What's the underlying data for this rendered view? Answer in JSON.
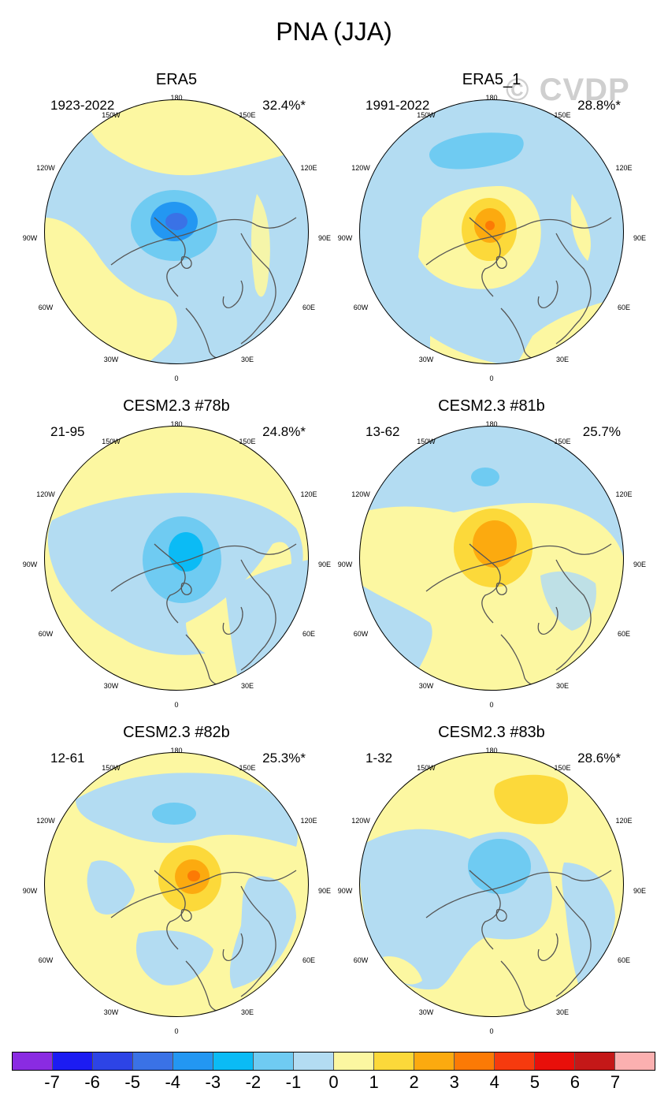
{
  "title": "PNA (JJA)",
  "watermark": "© CVDP",
  "lon_labels": {
    "l180": "180",
    "l150w": "150W",
    "l150e": "150E",
    "l120w": "120W",
    "l120e": "120E",
    "l90w": "90W",
    "l90e": "90E",
    "l60w": "60W",
    "l60e": "60E",
    "l30w": "30W",
    "l30e": "30E",
    "l0": "0"
  },
  "panels": [
    {
      "name": "ERA5",
      "years": "1923-2022",
      "pct": "32.4%*",
      "base": "#b3dcf2"
    },
    {
      "name": "ERA5_1",
      "years": "1991-2022",
      "pct": "28.8%*",
      "base": "#b3dcf2"
    },
    {
      "name": "CESM2.3 #78b",
      "years": "21-95",
      "pct": "24.8%*",
      "base": "#b3dcf2"
    },
    {
      "name": "CESM2.3 #81b",
      "years": "13-62",
      "pct": "25.7%",
      "base": "#b3dcf2"
    },
    {
      "name": "CESM2.3 #82b",
      "years": "12-61",
      "pct": "25.3%*",
      "base": "#fcf7a1"
    },
    {
      "name": "CESM2.3 #83b",
      "years": "1-32",
      "pct": "28.6%*",
      "base": "#fcf7a1"
    }
  ],
  "colorbar": {
    "colors": [
      "#8a2be2",
      "#1c1cf2",
      "#2d44e6",
      "#3a72e6",
      "#2397f2",
      "#0bbbf5",
      "#6fcbf2",
      "#b3dcf2",
      "#fcf7a1",
      "#fcd93a",
      "#fcaa0f",
      "#fc7a05",
      "#f63a0e",
      "#e80f0a",
      "#c41818",
      "#fbb0b0"
    ],
    "labels": [
      "-7",
      "-6",
      "-5",
      "-4",
      "-3",
      "-2",
      "-1",
      "0",
      "1",
      "2",
      "3",
      "4",
      "5",
      "6",
      "7"
    ]
  }
}
